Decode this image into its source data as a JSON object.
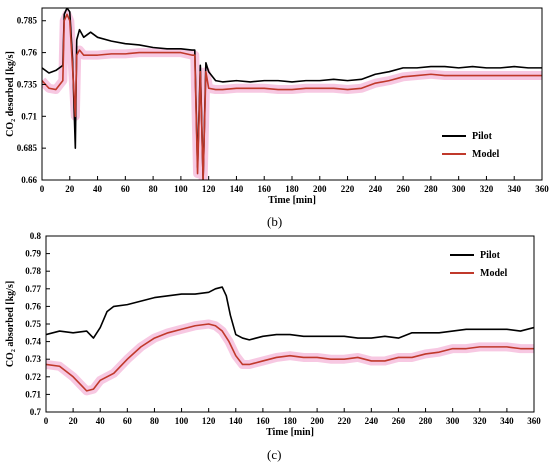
{
  "figure": {
    "panel_labels": [
      "(b)",
      "(c)"
    ]
  },
  "chart_data": [
    {
      "type": "line",
      "panel": "(b)",
      "xlabel": "Time [min]",
      "ylabel": "CO₂ desorbed [kg/s]",
      "xlim": [
        0,
        360
      ],
      "ylim": [
        0.66,
        0.795
      ],
      "xticks": [
        0,
        20,
        40,
        60,
        80,
        100,
        120,
        140,
        160,
        180,
        200,
        220,
        240,
        260,
        280,
        300,
        320,
        340,
        360
      ],
      "yticks": [
        0.66,
        0.685,
        0.71,
        0.735,
        0.76,
        0.785
      ],
      "ytick_labels": [
        "0.66",
        "0.685",
        "0.71",
        "0.735",
        "0.76",
        "0.785"
      ],
      "grid": false,
      "legend": "bottom-right",
      "colors": {
        "Pilot": "#000000",
        "Model": "#c0392b",
        "band": "#f4b6d8"
      },
      "series": [
        {
          "name": "Pilot",
          "x": [
            0,
            5,
            10,
            15,
            16,
            18,
            20,
            22,
            24,
            25,
            27,
            30,
            35,
            40,
            50,
            60,
            70,
            80,
            90,
            100,
            108,
            110,
            112,
            114,
            116,
            118,
            120,
            125,
            130,
            140,
            150,
            160,
            170,
            180,
            190,
            200,
            210,
            220,
            230,
            240,
            250,
            260,
            270,
            280,
            290,
            300,
            310,
            320,
            330,
            340,
            350,
            360
          ],
          "y": [
            0.748,
            0.744,
            0.746,
            0.75,
            0.79,
            0.795,
            0.792,
            0.755,
            0.685,
            0.77,
            0.778,
            0.772,
            0.776,
            0.772,
            0.769,
            0.767,
            0.766,
            0.764,
            0.763,
            0.763,
            0.762,
            0.762,
            0.67,
            0.75,
            0.66,
            0.752,
            0.745,
            0.738,
            0.737,
            0.738,
            0.737,
            0.738,
            0.738,
            0.737,
            0.738,
            0.738,
            0.739,
            0.738,
            0.739,
            0.743,
            0.745,
            0.748,
            0.748,
            0.749,
            0.749,
            0.748,
            0.749,
            0.748,
            0.748,
            0.749,
            0.748,
            0.748
          ]
        },
        {
          "name": "Model",
          "x": [
            0,
            5,
            10,
            15,
            16,
            18,
            20,
            22,
            24,
            25,
            27,
            30,
            35,
            40,
            50,
            60,
            70,
            80,
            90,
            100,
            108,
            110,
            112,
            114,
            116,
            118,
            120,
            125,
            130,
            140,
            150,
            160,
            170,
            180,
            190,
            200,
            210,
            220,
            230,
            240,
            250,
            260,
            270,
            280,
            290,
            300,
            310,
            320,
            330,
            340,
            350,
            360
          ],
          "y": [
            0.738,
            0.732,
            0.731,
            0.738,
            0.785,
            0.79,
            0.785,
            0.748,
            0.71,
            0.758,
            0.762,
            0.758,
            0.758,
            0.758,
            0.759,
            0.759,
            0.76,
            0.76,
            0.76,
            0.76,
            0.758,
            0.758,
            0.665,
            0.745,
            0.66,
            0.745,
            0.732,
            0.731,
            0.731,
            0.732,
            0.732,
            0.732,
            0.731,
            0.731,
            0.732,
            0.732,
            0.732,
            0.731,
            0.732,
            0.736,
            0.738,
            0.741,
            0.742,
            0.743,
            0.742,
            0.742,
            0.742,
            0.742,
            0.742,
            0.742,
            0.742,
            0.742
          ]
        }
      ]
    },
    {
      "type": "line",
      "panel": "(c)",
      "xlabel": "Time [min]",
      "ylabel": "CO₂ absorbed [kg/s]",
      "xlim": [
        0,
        360
      ],
      "ylim": [
        0.7,
        0.8
      ],
      "xticks": [
        0,
        20,
        40,
        60,
        80,
        100,
        120,
        140,
        160,
        180,
        200,
        220,
        240,
        260,
        280,
        300,
        320,
        340,
        360
      ],
      "yticks": [
        0.7,
        0.71,
        0.72,
        0.73,
        0.74,
        0.75,
        0.76,
        0.77,
        0.78,
        0.79,
        0.8
      ],
      "ytick_labels": [
        "0.7",
        "0.71",
        "0.72",
        "0.73",
        "0.74",
        "0.75",
        "0.76",
        "0.77",
        "0.78",
        "0.79",
        "0.8"
      ],
      "grid": false,
      "legend": "top-right",
      "colors": {
        "Pilot": "#000000",
        "Model": "#c0392b",
        "band": "#f4b6d8"
      },
      "series": [
        {
          "name": "Pilot",
          "x": [
            0,
            10,
            20,
            30,
            35,
            40,
            45,
            50,
            60,
            70,
            80,
            90,
            100,
            110,
            120,
            125,
            130,
            133,
            136,
            140,
            145,
            150,
            160,
            170,
            180,
            190,
            200,
            210,
            220,
            230,
            240,
            250,
            260,
            270,
            280,
            290,
            300,
            310,
            320,
            330,
            340,
            350,
            360
          ],
          "y": [
            0.744,
            0.746,
            0.745,
            0.746,
            0.742,
            0.748,
            0.757,
            0.76,
            0.761,
            0.763,
            0.765,
            0.766,
            0.767,
            0.767,
            0.768,
            0.77,
            0.771,
            0.766,
            0.755,
            0.744,
            0.742,
            0.741,
            0.743,
            0.744,
            0.744,
            0.743,
            0.743,
            0.743,
            0.743,
            0.742,
            0.742,
            0.743,
            0.742,
            0.745,
            0.745,
            0.745,
            0.746,
            0.747,
            0.747,
            0.747,
            0.747,
            0.746,
            0.748
          ]
        },
        {
          "name": "Model",
          "x": [
            0,
            10,
            20,
            25,
            30,
            35,
            40,
            45,
            50,
            60,
            70,
            80,
            90,
            100,
            110,
            120,
            125,
            130,
            135,
            140,
            145,
            150,
            160,
            170,
            180,
            190,
            200,
            210,
            220,
            230,
            240,
            250,
            260,
            270,
            280,
            290,
            300,
            310,
            320,
            330,
            340,
            350,
            360
          ],
          "y": [
            0.727,
            0.726,
            0.72,
            0.716,
            0.712,
            0.713,
            0.718,
            0.72,
            0.722,
            0.73,
            0.737,
            0.742,
            0.745,
            0.747,
            0.749,
            0.75,
            0.749,
            0.746,
            0.74,
            0.732,
            0.727,
            0.727,
            0.729,
            0.731,
            0.732,
            0.731,
            0.731,
            0.73,
            0.73,
            0.731,
            0.729,
            0.729,
            0.731,
            0.731,
            0.733,
            0.734,
            0.736,
            0.736,
            0.737,
            0.737,
            0.737,
            0.736,
            0.736
          ]
        }
      ]
    }
  ]
}
